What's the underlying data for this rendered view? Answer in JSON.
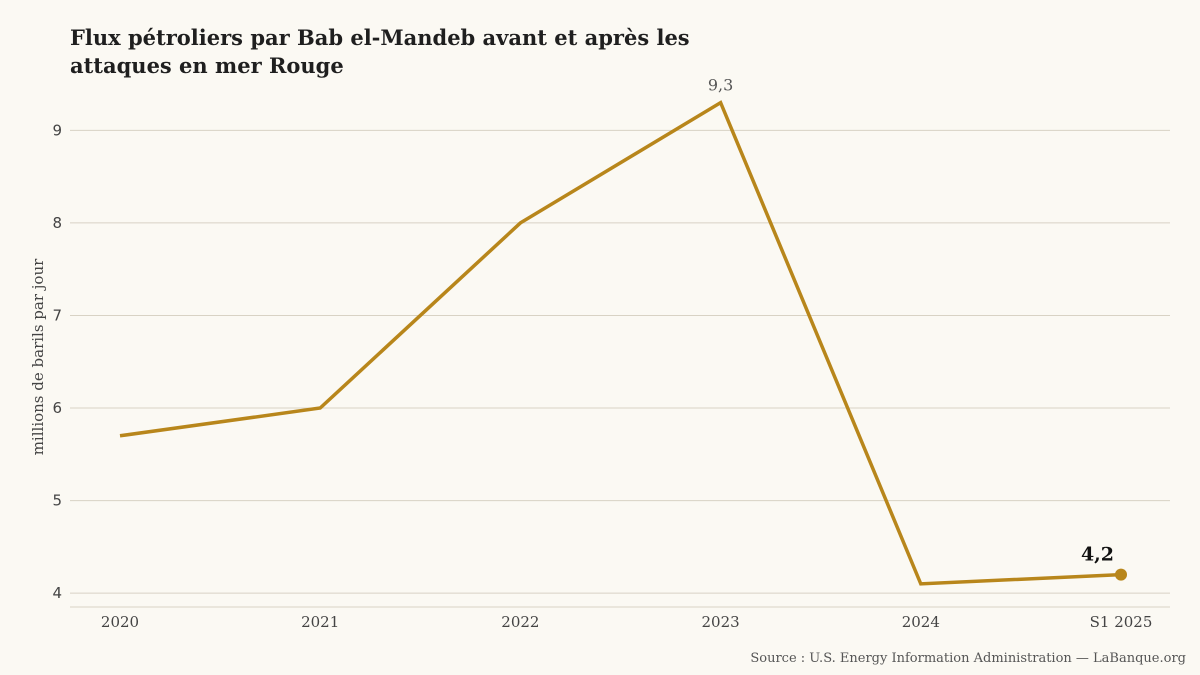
{
  "chart_data": {
    "type": "line",
    "title": "Flux pétroliers par Bab el-Mandeb avant et après les attaques en mer Rouge",
    "ylabel": "millions de barils par jour",
    "xlabel": "",
    "categories": [
      "2020",
      "2021",
      "2022",
      "2023",
      "2024",
      "S1 2025"
    ],
    "series": [
      {
        "values": [
          5.7,
          6.0,
          8.0,
          9.3,
          4.1,
          4.2
        ]
      }
    ],
    "ylim": [
      3.85,
      9.35
    ],
    "yticks": [
      4,
      5,
      6,
      7,
      8,
      9
    ],
    "grid": true,
    "annotations": [
      {
        "index": 3,
        "text": "9,3"
      },
      {
        "index": 5,
        "text": "4,2"
      }
    ],
    "source": "Source : U.S. Energy Information Administration — LaBanque.org",
    "colors": {
      "line": "#b8861b",
      "grid": "#d8d2c4",
      "background": "#fbf9f3"
    }
  }
}
